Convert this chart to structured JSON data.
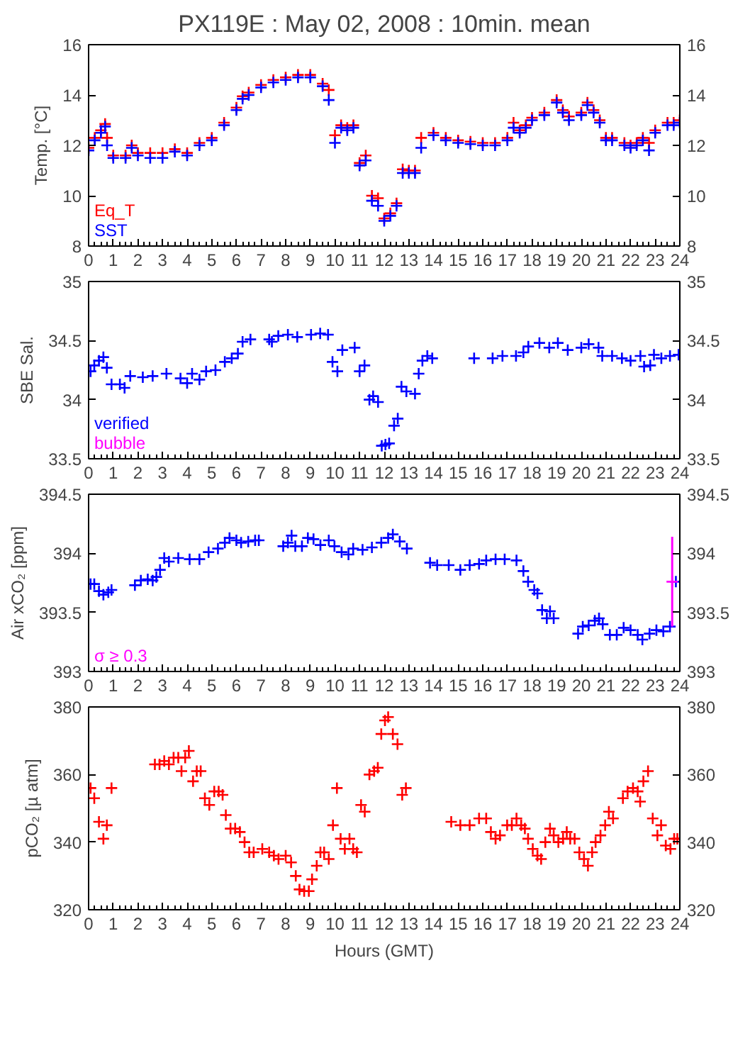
{
  "chart_data": [
    {
      "type": "scatter",
      "title": "PX119E : May 02, 2008 : 10min. mean",
      "ylabel": "Temp. [°C]",
      "marker": "cross",
      "grid": false,
      "xlim": [
        0,
        24
      ],
      "xticks": [
        0,
        1,
        2,
        3,
        4,
        5,
        6,
        7,
        8,
        9,
        10,
        11,
        12,
        13,
        14,
        15,
        16,
        17,
        18,
        19,
        20,
        21,
        22,
        23,
        24
      ],
      "ylim": [
        8,
        16
      ],
      "yticks": [
        8,
        10,
        12,
        14,
        16
      ],
      "y2lim": [
        8,
        16
      ],
      "y2ticks": [
        8,
        10,
        12,
        14,
        16
      ],
      "series": [
        {
          "name": "Eq_T",
          "color": "#ff0000",
          "x": [
            0,
            0.25,
            0.5,
            0.67,
            0.75,
            1.0,
            1.5,
            1.75,
            2.0,
            2.5,
            3.0,
            3.5,
            4.0,
            4.5,
            5.0,
            5.5,
            6.0,
            6.25,
            6.5,
            7.0,
            7.5,
            8.0,
            8.5,
            9.0,
            9.5,
            9.75,
            10.0,
            10.25,
            10.5,
            10.75,
            11.0,
            11.25,
            11.5,
            11.75,
            12.0,
            12.25,
            12.5,
            12.75,
            13.0,
            13.25,
            13.5,
            14.0,
            14.5,
            15.0,
            15.5,
            16.0,
            16.5,
            17.0,
            17.25,
            17.5,
            17.75,
            18.0,
            18.5,
            19.0,
            19.25,
            19.5,
            20.0,
            20.25,
            20.5,
            20.75,
            21.0,
            21.25,
            21.75,
            22.0,
            22.25,
            22.5,
            22.75,
            23.0,
            23.5,
            23.75,
            24.0
          ],
          "values": [
            11.9,
            12.3,
            12.6,
            12.85,
            12.3,
            11.6,
            11.6,
            12.0,
            11.7,
            11.7,
            11.7,
            11.85,
            11.7,
            12.1,
            12.3,
            12.9,
            13.5,
            13.95,
            14.1,
            14.4,
            14.6,
            14.7,
            14.8,
            14.8,
            14.45,
            14.2,
            12.4,
            12.8,
            12.7,
            12.8,
            11.3,
            11.6,
            10.0,
            9.9,
            9.1,
            9.3,
            9.7,
            11.05,
            11.0,
            11.0,
            12.3,
            12.5,
            12.3,
            12.2,
            12.15,
            12.1,
            12.1,
            12.3,
            12.9,
            12.6,
            12.8,
            13.1,
            13.3,
            13.8,
            13.4,
            13.15,
            13.3,
            13.7,
            13.4,
            13.0,
            12.3,
            12.3,
            12.1,
            12.0,
            12.1,
            12.3,
            12.1,
            12.6,
            12.9,
            12.9,
            13.0
          ]
        },
        {
          "name": "SST",
          "color": "#0000ff",
          "x": [
            0,
            0.25,
            0.5,
            0.67,
            0.75,
            1.0,
            1.5,
            1.75,
            2.0,
            2.5,
            3.0,
            3.5,
            4.0,
            4.5,
            5.0,
            5.5,
            6.0,
            6.25,
            6.5,
            7.0,
            7.5,
            8.0,
            8.5,
            9.0,
            9.5,
            9.75,
            10.0,
            10.25,
            10.5,
            10.75,
            11.0,
            11.25,
            11.5,
            11.75,
            12.0,
            12.25,
            12.5,
            12.75,
            13.0,
            13.25,
            13.5,
            14.0,
            14.5,
            15.0,
            15.5,
            16.0,
            16.5,
            17.0,
            17.25,
            17.5,
            17.75,
            18.0,
            18.5,
            19.0,
            19.25,
            19.5,
            20.0,
            20.25,
            20.5,
            20.75,
            21.0,
            21.25,
            21.75,
            22.0,
            22.25,
            22.5,
            22.75,
            23.0,
            23.5,
            23.75,
            24.0
          ],
          "values": [
            11.8,
            12.2,
            12.5,
            12.75,
            12.0,
            11.5,
            11.5,
            11.9,
            11.6,
            11.5,
            11.5,
            11.75,
            11.6,
            12.0,
            12.2,
            12.8,
            13.4,
            13.85,
            14.0,
            14.3,
            14.5,
            14.6,
            14.7,
            14.7,
            14.35,
            13.8,
            12.1,
            12.7,
            12.6,
            12.7,
            11.2,
            11.4,
            9.8,
            9.6,
            9.0,
            9.2,
            9.6,
            10.9,
            10.9,
            10.9,
            11.9,
            12.4,
            12.2,
            12.1,
            12.05,
            12.0,
            12.0,
            12.2,
            12.7,
            12.5,
            12.7,
            13.0,
            13.2,
            13.7,
            13.3,
            13.0,
            13.2,
            13.6,
            13.3,
            12.9,
            12.2,
            12.2,
            12.0,
            11.9,
            12.0,
            12.2,
            11.8,
            12.5,
            12.8,
            12.8,
            12.9
          ]
        }
      ]
    },
    {
      "type": "scatter",
      "ylabel": "SBE Sal.",
      "marker": "cross",
      "grid": false,
      "xlim": [
        0,
        24
      ],
      "xticks": [
        0,
        1,
        2,
        3,
        4,
        5,
        6,
        7,
        8,
        9,
        10,
        11,
        12,
        13,
        14,
        15,
        16,
        17,
        18,
        19,
        20,
        21,
        22,
        23,
        24
      ],
      "ylim": [
        33.5,
        35
      ],
      "yticks": [
        33.5,
        34,
        34.5,
        35
      ],
      "y2lim": [
        33.5,
        35
      ],
      "y2ticks": [
        33.5,
        34,
        34.5,
        35
      ],
      "series": [
        {
          "name": "verified",
          "color": "#0000ff",
          "x": [
            0.08,
            0.23,
            0.42,
            0.6,
            0.74,
            0.93,
            1.27,
            1.46,
            1.69,
            2.2,
            2.6,
            3.16,
            3.73,
            4.0,
            4.2,
            4.5,
            4.77,
            5.15,
            5.53,
            5.81,
            6.06,
            6.25,
            6.57,
            7.33,
            7.44,
            7.7,
            8.09,
            8.47,
            9.03,
            9.4,
            9.72,
            9.9,
            10.1,
            10.3,
            10.8,
            11.0,
            11.2,
            11.4,
            11.55,
            11.75,
            11.9,
            12.05,
            12.2,
            12.4,
            12.55,
            12.7,
            12.9,
            13.25,
            13.4,
            13.55,
            13.75,
            13.95,
            15.65,
            16.4,
            16.8,
            17.35,
            17.65,
            17.85,
            18.3,
            18.7,
            19.05,
            19.45,
            20.0,
            20.3,
            20.7,
            20.85,
            21.25,
            21.65,
            22.0,
            22.4,
            22.55,
            22.8,
            22.95,
            23.25,
            23.6,
            23.95
          ],
          "values": [
            34.24,
            34.29,
            34.33,
            34.36,
            34.27,
            34.13,
            34.13,
            34.1,
            34.2,
            34.19,
            34.2,
            34.22,
            34.18,
            34.14,
            34.22,
            34.17,
            34.24,
            34.25,
            34.32,
            34.35,
            34.39,
            34.49,
            34.51,
            34.51,
            34.49,
            34.54,
            34.55,
            34.53,
            34.55,
            34.56,
            34.55,
            34.32,
            34.24,
            34.42,
            34.44,
            34.24,
            34.29,
            34.0,
            34.03,
            33.98,
            33.61,
            33.62,
            33.63,
            33.78,
            33.84,
            34.11,
            34.07,
            34.05,
            34.22,
            34.33,
            34.37,
            34.35,
            34.35,
            34.35,
            34.37,
            34.37,
            34.4,
            34.45,
            34.48,
            34.44,
            34.48,
            34.42,
            34.44,
            34.47,
            34.44,
            34.37,
            34.37,
            34.35,
            34.33,
            34.37,
            34.28,
            34.29,
            34.38,
            34.35,
            34.37,
            34.38
          ]
        },
        {
          "name": "bubble",
          "color": "#ff00ff"
        }
      ]
    },
    {
      "type": "scatter",
      "ylabel": "Air xCO₂ [ppm]",
      "marker": "cross",
      "grid": false,
      "xlim": [
        0,
        24
      ],
      "xticks": [
        0,
        1,
        2,
        3,
        4,
        5,
        6,
        7,
        8,
        9,
        10,
        11,
        12,
        13,
        14,
        15,
        16,
        17,
        18,
        19,
        20,
        21,
        22,
        23,
        24
      ],
      "ylim": [
        393,
        394.5
      ],
      "yticks": [
        393,
        393.5,
        394,
        394.5
      ],
      "y2lim": [
        393,
        394.5
      ],
      "y2ticks": [
        393,
        393.5,
        394,
        394.5
      ],
      "series": [
        {
          "color": "#0000ff",
          "x": [
            0.08,
            0.23,
            0.42,
            0.6,
            0.8,
            0.93,
            1.88,
            2.12,
            2.4,
            2.6,
            2.75,
            2.9,
            3.07,
            3.26,
            3.64,
            4.1,
            4.5,
            4.87,
            5.25,
            5.53,
            5.72,
            6.0,
            6.19,
            6.48,
            6.76,
            6.91,
            7.9,
            8.09,
            8.24,
            8.39,
            8.66,
            8.9,
            9.13,
            9.41,
            9.75,
            9.98,
            10.27,
            10.55,
            10.74,
            11.12,
            11.5,
            11.88,
            12.16,
            12.35,
            12.63,
            12.92,
            13.86,
            14.15,
            14.62,
            15.09,
            15.47,
            15.85,
            16.14,
            16.52,
            16.89,
            17.37,
            17.65,
            17.84,
            18.09,
            18.22,
            18.41,
            18.6,
            18.73,
            18.88,
            19.87,
            20.06,
            20.3,
            20.55,
            20.72,
            20.87,
            21.16,
            21.44,
            21.72,
            22.0,
            22.29,
            22.48,
            22.77,
            23.05,
            23.33,
            23.6,
            23.84
          ],
          "values": [
            393.74,
            393.74,
            393.68,
            393.65,
            393.67,
            393.69,
            393.73,
            393.77,
            393.78,
            393.77,
            393.8,
            393.86,
            393.96,
            393.93,
            393.96,
            393.95,
            393.95,
            394.01,
            394.04,
            394.09,
            394.13,
            394.11,
            394.09,
            394.1,
            394.11,
            394.11,
            394.06,
            394.09,
            394.15,
            394.06,
            394.06,
            394.13,
            394.12,
            394.07,
            394.11,
            394.06,
            394.01,
            393.99,
            394.04,
            394.03,
            394.05,
            394.09,
            394.13,
            394.16,
            394.1,
            394.04,
            393.92,
            393.9,
            393.9,
            393.86,
            393.9,
            393.91,
            393.94,
            393.95,
            393.95,
            393.94,
            393.85,
            393.76,
            393.69,
            393.66,
            393.52,
            393.45,
            393.51,
            393.45,
            393.32,
            393.38,
            393.39,
            393.43,
            393.45,
            393.4,
            393.31,
            393.31,
            393.37,
            393.35,
            393.31,
            393.27,
            393.32,
            393.35,
            393.34,
            393.38,
            393.76
          ]
        },
        {
          "name": "σ ≥ 0.3",
          "color": "#ff00ff",
          "x": [
            23.69
          ],
          "values": [
            393.76
          ],
          "errors": [
            [
              393.38,
              394.14
            ]
          ]
        }
      ]
    },
    {
      "type": "scatter",
      "ylabel": "pCO₂ [µ atm]",
      "xlabel": "Hours (GMT)",
      "marker": "cross",
      "grid": false,
      "xlim": [
        0,
        24
      ],
      "xticks": [
        0,
        1,
        2,
        3,
        4,
        5,
        6,
        7,
        8,
        9,
        10,
        11,
        12,
        13,
        14,
        15,
        16,
        17,
        18,
        19,
        20,
        21,
        22,
        23,
        24
      ],
      "ylim": [
        320,
        380
      ],
      "yticks": [
        320,
        340,
        360,
        380
      ],
      "y2lim": [
        320,
        380
      ],
      "y2ticks": [
        320,
        340,
        360,
        380
      ],
      "series": [
        {
          "color": "#ff0000",
          "x": [
            0.08,
            0.23,
            0.42,
            0.6,
            0.74,
            0.93,
            2.69,
            2.88,
            3.07,
            3.26,
            3.45,
            3.64,
            3.77,
            3.92,
            4.07,
            4.24,
            4.39,
            4.55,
            4.72,
            4.9,
            5.1,
            5.28,
            5.44,
            5.57,
            5.76,
            5.95,
            6.14,
            6.33,
            6.52,
            6.7,
            7.05,
            7.33,
            7.52,
            7.71,
            8.0,
            8.22,
            8.41,
            8.56,
            8.75,
            8.94,
            9.07,
            9.26,
            9.41,
            9.56,
            9.75,
            9.92,
            10.08,
            10.23,
            10.4,
            10.59,
            10.74,
            10.89,
            11.06,
            11.21,
            11.4,
            11.59,
            11.74,
            11.88,
            12.03,
            12.16,
            12.35,
            12.54,
            12.73,
            12.88,
            14.72,
            15.09,
            15.47,
            15.85,
            16.14,
            16.33,
            16.52,
            16.7,
            16.99,
            17.18,
            17.37,
            17.56,
            17.71,
            17.84,
            18.03,
            18.22,
            18.37,
            18.54,
            18.73,
            18.88,
            19.07,
            19.26,
            19.41,
            19.55,
            19.73,
            19.92,
            20.11,
            20.27,
            20.44,
            20.58,
            20.78,
            20.97,
            21.12,
            21.29,
            21.69,
            21.88,
            22.1,
            22.29,
            22.39,
            22.52,
            22.71,
            22.9,
            23.09,
            23.24,
            23.43,
            23.62,
            23.77,
            23.9
          ],
          "values": [
            356,
            353,
            346,
            341,
            345,
            356,
            363,
            363,
            364,
            363,
            365,
            365,
            361,
            365,
            367,
            358,
            361,
            361,
            353,
            351,
            355,
            355,
            354,
            348,
            344,
            344,
            343,
            340,
            337,
            337,
            338,
            337,
            336,
            335,
            336,
            334,
            330,
            326,
            325.5,
            325.5,
            329,
            333,
            337,
            337,
            335,
            345,
            356,
            341,
            338,
            341,
            338,
            337,
            351,
            349,
            360,
            361,
            362,
            372,
            376,
            377,
            372,
            369,
            354,
            356,
            346,
            345,
            345,
            347,
            347,
            343,
            341,
            342,
            345,
            345,
            347,
            345,
            344,
            341,
            338,
            336,
            335,
            340,
            344,
            342,
            340,
            341,
            343,
            341,
            341,
            337,
            335,
            333,
            337,
            340,
            342,
            345,
            349,
            347,
            353,
            355,
            356,
            355,
            352,
            358,
            361,
            347,
            342,
            345,
            339,
            338,
            341,
            341
          ]
        }
      ]
    }
  ]
}
